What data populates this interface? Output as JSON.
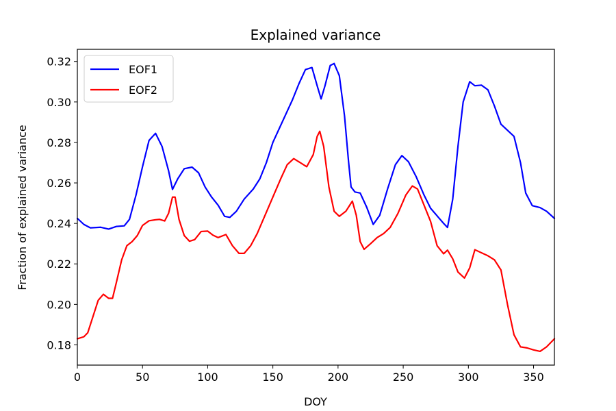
{
  "chart_data": {
    "type": "line",
    "title": "Explained variance",
    "xlabel": "DOY",
    "ylabel": "Fraction of explained variance",
    "xlim": [
      0,
      366
    ],
    "ylim": [
      0.17,
      0.326
    ],
    "xticks": [
      0,
      50,
      100,
      150,
      200,
      250,
      300,
      350
    ],
    "yticks": [
      0.18,
      0.2,
      0.22,
      0.24,
      0.26,
      0.28,
      0.3,
      0.32
    ],
    "ytick_labels": [
      "0.18",
      "0.20",
      "0.22",
      "0.24",
      "0.26",
      "0.28",
      "0.30",
      "0.32"
    ],
    "grid": false,
    "legend": {
      "position": "top-left"
    },
    "series": [
      {
        "name": "EOF1",
        "color": "#0000ff",
        "points": [
          [
            0,
            0.2425
          ],
          [
            5,
            0.2395
          ],
          [
            10,
            0.2378
          ],
          [
            18,
            0.2381
          ],
          [
            24,
            0.2372
          ],
          [
            30,
            0.2385
          ],
          [
            36,
            0.2388
          ],
          [
            40,
            0.242
          ],
          [
            45,
            0.254
          ],
          [
            50,
            0.268
          ],
          [
            55,
            0.281
          ],
          [
            60,
            0.2845
          ],
          [
            65,
            0.278
          ],
          [
            70,
            0.266
          ],
          [
            73,
            0.2568
          ],
          [
            77,
            0.262
          ],
          [
            82,
            0.267
          ],
          [
            88,
            0.2678
          ],
          [
            93,
            0.265
          ],
          [
            98,
            0.258
          ],
          [
            103,
            0.253
          ],
          [
            108,
            0.249
          ],
          [
            113,
            0.2435
          ],
          [
            117,
            0.243
          ],
          [
            122,
            0.246
          ],
          [
            128,
            0.252
          ],
          [
            135,
            0.257
          ],
          [
            140,
            0.262
          ],
          [
            145,
            0.27
          ],
          [
            150,
            0.28
          ],
          [
            155,
            0.287
          ],
          [
            160,
            0.294
          ],
          [
            165,
            0.301
          ],
          [
            170,
            0.309
          ],
          [
            175,
            0.316
          ],
          [
            180,
            0.317
          ],
          [
            184,
            0.308
          ],
          [
            187,
            0.3015
          ],
          [
            190,
            0.308
          ],
          [
            194,
            0.318
          ],
          [
            197,
            0.319
          ],
          [
            201,
            0.313
          ],
          [
            205,
            0.293
          ],
          [
            208,
            0.271
          ],
          [
            210,
            0.258
          ],
          [
            213,
            0.2555
          ],
          [
            217,
            0.255
          ],
          [
            222,
            0.248
          ],
          [
            227,
            0.2395
          ],
          [
            232,
            0.244
          ],
          [
            238,
            0.257
          ],
          [
            244,
            0.269
          ],
          [
            249,
            0.2735
          ],
          [
            254,
            0.2705
          ],
          [
            260,
            0.263
          ],
          [
            266,
            0.254
          ],
          [
            271,
            0.2475
          ],
          [
            277,
            0.243
          ],
          [
            281,
            0.24
          ],
          [
            284,
            0.238
          ],
          [
            288,
            0.252
          ],
          [
            292,
            0.278
          ],
          [
            296,
            0.3
          ],
          [
            301,
            0.31
          ],
          [
            305,
            0.308
          ],
          [
            310,
            0.3083
          ],
          [
            315,
            0.306
          ],
          [
            320,
            0.298
          ],
          [
            325,
            0.289
          ],
          [
            330,
            0.286
          ],
          [
            335,
            0.283
          ],
          [
            340,
            0.27
          ],
          [
            344,
            0.255
          ],
          [
            349,
            0.2488
          ],
          [
            355,
            0.2478
          ],
          [
            360,
            0.246
          ],
          [
            366,
            0.2425
          ]
        ]
      },
      {
        "name": "EOF2",
        "color": "#ff0000",
        "points": [
          [
            0,
            0.183
          ],
          [
            5,
            0.184
          ],
          [
            8,
            0.186
          ],
          [
            12,
            0.194
          ],
          [
            16,
            0.202
          ],
          [
            20,
            0.205
          ],
          [
            24,
            0.203
          ],
          [
            27,
            0.203
          ],
          [
            30,
            0.211
          ],
          [
            34,
            0.222
          ],
          [
            38,
            0.229
          ],
          [
            42,
            0.231
          ],
          [
            46,
            0.234
          ],
          [
            50,
            0.239
          ],
          [
            55,
            0.2413
          ],
          [
            60,
            0.2418
          ],
          [
            63,
            0.242
          ],
          [
            67,
            0.2412
          ],
          [
            70,
            0.245
          ],
          [
            73,
            0.253
          ],
          [
            75,
            0.253
          ],
          [
            78,
            0.242
          ],
          [
            82,
            0.234
          ],
          [
            86,
            0.2312
          ],
          [
            90,
            0.232
          ],
          [
            95,
            0.236
          ],
          [
            100,
            0.2362
          ],
          [
            104,
            0.2342
          ],
          [
            108,
            0.233
          ],
          [
            114,
            0.2345
          ],
          [
            119,
            0.229
          ],
          [
            124,
            0.2252
          ],
          [
            128,
            0.2252
          ],
          [
            133,
            0.229
          ],
          [
            138,
            0.235
          ],
          [
            144,
            0.244
          ],
          [
            150,
            0.253
          ],
          [
            156,
            0.262
          ],
          [
            161,
            0.269
          ],
          [
            166,
            0.272
          ],
          [
            171,
            0.27
          ],
          [
            176,
            0.268
          ],
          [
            181,
            0.274
          ],
          [
            184,
            0.283
          ],
          [
            186,
            0.2855
          ],
          [
            189,
            0.278
          ],
          [
            193,
            0.258
          ],
          [
            197,
            0.246
          ],
          [
            201,
            0.2435
          ],
          [
            206,
            0.246
          ],
          [
            211,
            0.251
          ],
          [
            214,
            0.244
          ],
          [
            217,
            0.231
          ],
          [
            220,
            0.2272
          ],
          [
            225,
            0.23
          ],
          [
            230,
            0.233
          ],
          [
            235,
            0.235
          ],
          [
            240,
            0.238
          ],
          [
            246,
            0.245
          ],
          [
            252,
            0.254
          ],
          [
            257,
            0.2585
          ],
          [
            261,
            0.257
          ],
          [
            266,
            0.249
          ],
          [
            271,
            0.241
          ],
          [
            276,
            0.229
          ],
          [
            281,
            0.225
          ],
          [
            284,
            0.2268
          ],
          [
            288,
            0.2225
          ],
          [
            292,
            0.216
          ],
          [
            297,
            0.213
          ],
          [
            301,
            0.218
          ],
          [
            305,
            0.227
          ],
          [
            310,
            0.2255
          ],
          [
            315,
            0.224
          ],
          [
            320,
            0.222
          ],
          [
            325,
            0.217
          ],
          [
            330,
            0.2
          ],
          [
            335,
            0.185
          ],
          [
            340,
            0.179
          ],
          [
            345,
            0.1785
          ],
          [
            350,
            0.1775
          ],
          [
            355,
            0.1768
          ],
          [
            360,
            0.179
          ],
          [
            366,
            0.183
          ]
        ]
      }
    ]
  }
}
